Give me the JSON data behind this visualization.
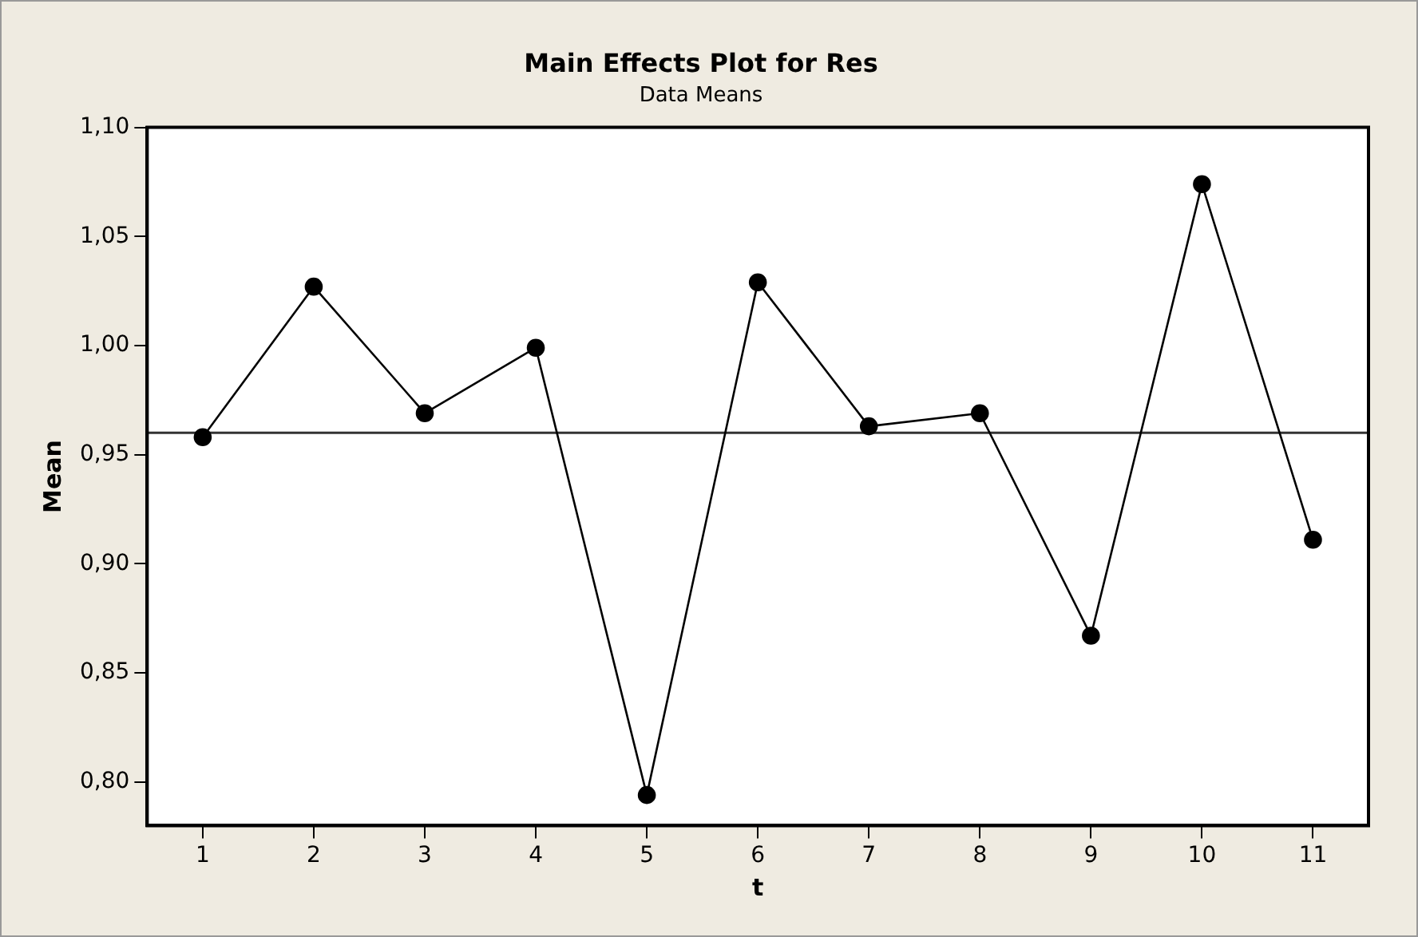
{
  "chart_data": {
    "type": "line",
    "title": "Main Effects Plot for Res",
    "subtitle": "Data Means",
    "xlabel": "t",
    "ylabel": "Mean",
    "categories": [
      "1",
      "2",
      "3",
      "4",
      "5",
      "6",
      "7",
      "8",
      "9",
      "10",
      "11"
    ],
    "series": [
      {
        "color": "#000000",
        "values": [
          0.958,
          1.027,
          0.969,
          0.999,
          0.794,
          1.029,
          0.963,
          0.969,
          0.867,
          1.074,
          0.911
        ]
      }
    ],
    "ylim": [
      0.78,
      1.1
    ],
    "yticks": [
      {
        "value": 0.8,
        "label": "0,80"
      },
      {
        "value": 0.85,
        "label": "0,85"
      },
      {
        "value": 0.9,
        "label": "0,90"
      },
      {
        "value": 0.95,
        "label": "0,95"
      },
      {
        "value": 1.0,
        "label": "1,00"
      },
      {
        "value": 1.05,
        "label": "1,05"
      },
      {
        "value": 1.1,
        "label": "1,10"
      }
    ],
    "ref_lines": [
      {
        "axis": "y",
        "value": 0.96,
        "color": "#333333"
      }
    ],
    "grid": false,
    "legend": false,
    "marker": "circle",
    "line_style": "solid"
  }
}
